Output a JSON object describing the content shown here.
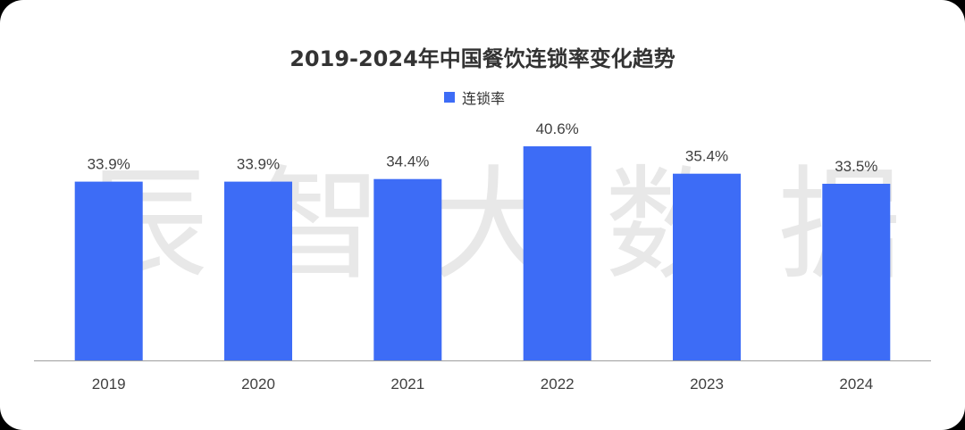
{
  "watermark": "辰 智 大 数 据",
  "colors": {
    "bar": "#3D6CF6",
    "axis": "#9E9E9E",
    "label": "#404040",
    "watermark": "#E8E8E8"
  },
  "chart_data": {
    "type": "bar",
    "title": "2019-2024年中国餐饮连锁率变化趋势",
    "xlabel": "",
    "ylabel": "",
    "legend_position": "top-center",
    "grid": false,
    "ylim": [
      0,
      45
    ],
    "categories": [
      "2019",
      "2020",
      "2021",
      "2022",
      "2023",
      "2024"
    ],
    "series": [
      {
        "name": "连锁率",
        "values": [
          33.9,
          33.9,
          34.4,
          40.6,
          35.4,
          33.5
        ],
        "labels": [
          "33.9%",
          "33.9%",
          "34.4%",
          "40.6%",
          "35.4%",
          "33.5%"
        ]
      }
    ]
  }
}
